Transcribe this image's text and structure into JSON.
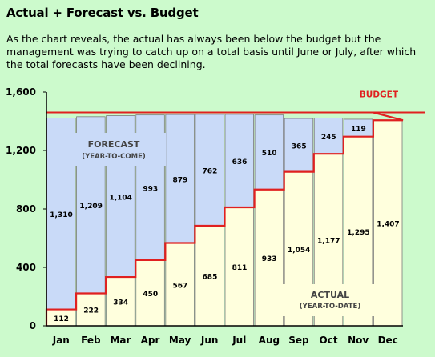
{
  "title": "Actual + Forecast vs. Budget",
  "subtitle": "As the chart reveals, the actual has always been below the budget but the management was trying to catch up on a total basis until June or July, after which the total forecasts have been declining.",
  "chart_data": {
    "type": "bar",
    "stacked": true,
    "categories": [
      "Jan",
      "Feb",
      "Mar",
      "Apr",
      "May",
      "Jun",
      "Jul",
      "Aug",
      "Sep",
      "Oct",
      "Nov",
      "Dec"
    ],
    "series": [
      {
        "name": "ACTUAL",
        "values": [
          112,
          222,
          334,
          450,
          567,
          685,
          811,
          933,
          1054,
          1177,
          1295,
          1407
        ],
        "color": "#ffffdd"
      },
      {
        "name": "FORECAST",
        "values": [
          1310,
          1209,
          1104,
          993,
          879,
          762,
          636,
          510,
          365,
          245,
          119,
          null
        ],
        "color": "#c9daf8"
      }
    ],
    "budget": 1460,
    "budget_label": "BUDGET",
    "forecast_label": {
      "title": "FORECAST",
      "sub": "(YEAR-TO-COME)"
    },
    "actual_label": {
      "title": "ACTUAL",
      "sub": "(YEAR-TO-DATE)"
    },
    "y_ticks": [
      "0",
      "400",
      "800",
      "1,200",
      "1,600"
    ],
    "y_tick_values": [
      0,
      400,
      800,
      1200,
      1600
    ],
    "ylim": [
      0,
      1600
    ],
    "line_color": "#e02020",
    "grid": false
  }
}
